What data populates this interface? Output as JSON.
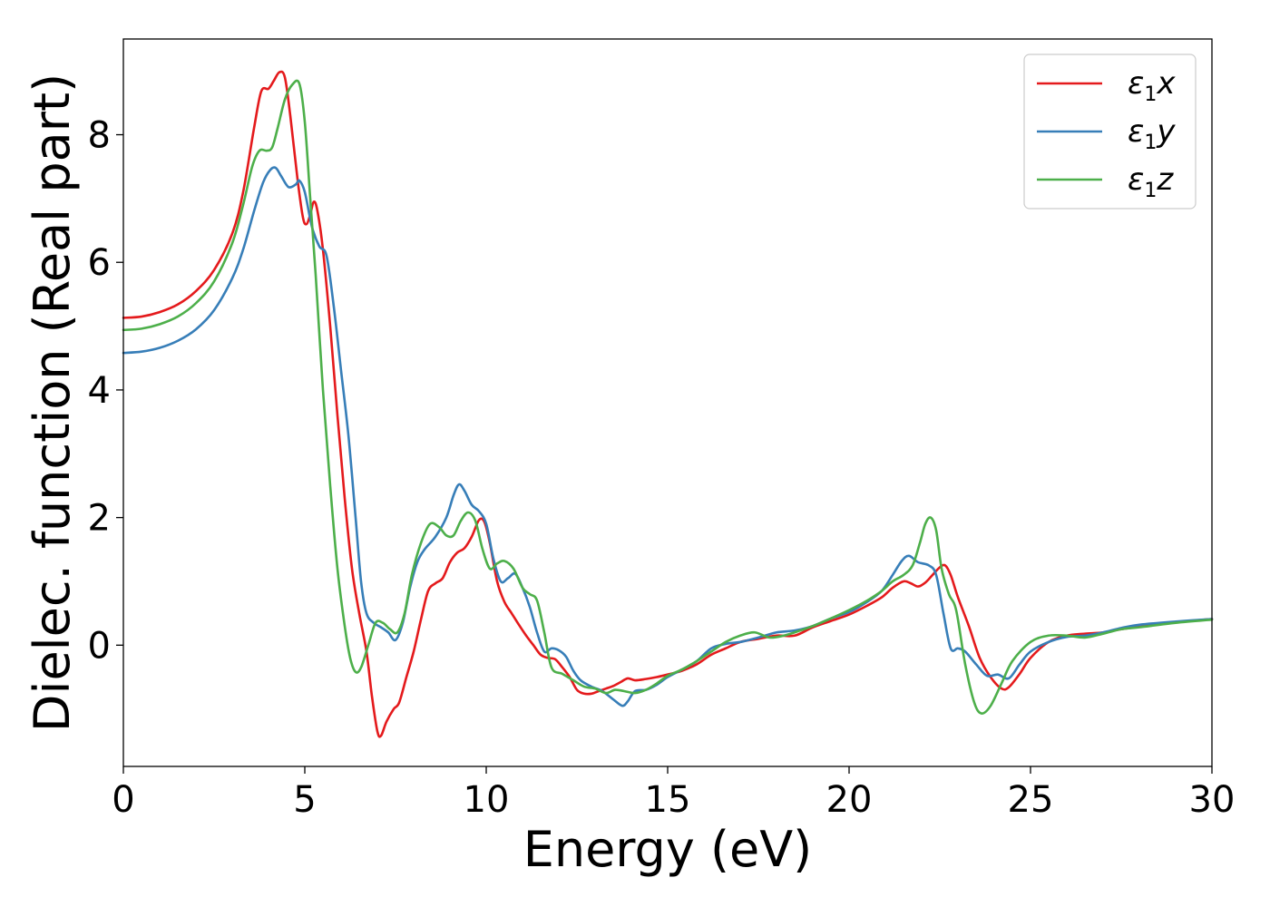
{
  "chart_data": {
    "type": "line",
    "xlabel": "Energy (eV)",
    "ylabel": "Dielec. function (Real part)",
    "xlim": [
      0,
      30
    ],
    "ylim": [
      -1.9,
      9.5
    ],
    "xticks": [
      0,
      5,
      10,
      15,
      20,
      25,
      30
    ],
    "yticks": [
      0,
      2,
      4,
      6,
      8
    ],
    "grid": false,
    "legend": "top-right",
    "series": [
      {
        "name": "ε1x",
        "sym": "ε",
        "sub": "1",
        "var": "x",
        "color": "#e41a1c",
        "points": [
          [
            0,
            5.13
          ],
          [
            0.5,
            5.15
          ],
          [
            1,
            5.22
          ],
          [
            1.5,
            5.34
          ],
          [
            2,
            5.55
          ],
          [
            2.5,
            5.88
          ],
          [
            3,
            6.45
          ],
          [
            3.3,
            7.1
          ],
          [
            3.6,
            8.1
          ],
          [
            3.8,
            8.68
          ],
          [
            4.0,
            8.72
          ],
          [
            4.15,
            8.85
          ],
          [
            4.3,
            8.98
          ],
          [
            4.45,
            8.9
          ],
          [
            4.6,
            8.3
          ],
          [
            4.8,
            7.3
          ],
          [
            4.95,
            6.7
          ],
          [
            5.05,
            6.6
          ],
          [
            5.15,
            6.75
          ],
          [
            5.25,
            6.95
          ],
          [
            5.35,
            6.8
          ],
          [
            5.5,
            6.2
          ],
          [
            5.7,
            5.0
          ],
          [
            5.9,
            3.6
          ],
          [
            6.1,
            2.3
          ],
          [
            6.3,
            1.2
          ],
          [
            6.5,
            0.5
          ],
          [
            6.7,
            -0.1
          ],
          [
            6.85,
            -0.8
          ],
          [
            7.0,
            -1.35
          ],
          [
            7.1,
            -1.42
          ],
          [
            7.25,
            -1.2
          ],
          [
            7.45,
            -1.0
          ],
          [
            7.6,
            -0.9
          ],
          [
            7.8,
            -0.5
          ],
          [
            8.0,
            -0.1
          ],
          [
            8.2,
            0.4
          ],
          [
            8.4,
            0.85
          ],
          [
            8.6,
            0.97
          ],
          [
            8.8,
            1.05
          ],
          [
            9.0,
            1.3
          ],
          [
            9.2,
            1.45
          ],
          [
            9.4,
            1.52
          ],
          [
            9.6,
            1.7
          ],
          [
            9.8,
            1.96
          ],
          [
            9.95,
            1.93
          ],
          [
            10.1,
            1.6
          ],
          [
            10.3,
            1.0
          ],
          [
            10.5,
            0.68
          ],
          [
            10.7,
            0.5
          ],
          [
            10.9,
            0.32
          ],
          [
            11.1,
            0.15
          ],
          [
            11.3,
            0.0
          ],
          [
            11.5,
            -0.15
          ],
          [
            11.7,
            -0.2
          ],
          [
            11.9,
            -0.22
          ],
          [
            12.1,
            -0.35
          ],
          [
            12.3,
            -0.5
          ],
          [
            12.5,
            -0.7
          ],
          [
            12.7,
            -0.76
          ],
          [
            12.9,
            -0.76
          ],
          [
            13.1,
            -0.72
          ],
          [
            13.3,
            -0.68
          ],
          [
            13.5,
            -0.64
          ],
          [
            13.7,
            -0.58
          ],
          [
            13.9,
            -0.52
          ],
          [
            14.1,
            -0.55
          ],
          [
            14.4,
            -0.53
          ],
          [
            14.7,
            -0.5
          ],
          [
            15.0,
            -0.46
          ],
          [
            15.4,
            -0.4
          ],
          [
            15.8,
            -0.3
          ],
          [
            16.2,
            -0.15
          ],
          [
            16.6,
            -0.05
          ],
          [
            17.0,
            0.05
          ],
          [
            17.5,
            0.1
          ],
          [
            18.0,
            0.15
          ],
          [
            18.5,
            0.15
          ],
          [
            19.0,
            0.28
          ],
          [
            19.5,
            0.38
          ],
          [
            20.0,
            0.48
          ],
          [
            20.5,
            0.62
          ],
          [
            20.9,
            0.75
          ],
          [
            21.2,
            0.9
          ],
          [
            21.5,
            1.0
          ],
          [
            21.7,
            0.97
          ],
          [
            21.9,
            0.92
          ],
          [
            22.1,
            0.98
          ],
          [
            22.3,
            1.1
          ],
          [
            22.5,
            1.22
          ],
          [
            22.65,
            1.25
          ],
          [
            22.8,
            1.1
          ],
          [
            23.0,
            0.75
          ],
          [
            23.3,
            0.3
          ],
          [
            23.6,
            -0.2
          ],
          [
            23.9,
            -0.5
          ],
          [
            24.2,
            -0.68
          ],
          [
            24.4,
            -0.66
          ],
          [
            24.7,
            -0.45
          ],
          [
            25.0,
            -0.2
          ],
          [
            25.5,
            0.05
          ],
          [
            26.0,
            0.15
          ],
          [
            26.5,
            0.18
          ],
          [
            27.0,
            0.2
          ],
          [
            27.5,
            0.25
          ],
          [
            28.0,
            0.29
          ],
          [
            29.0,
            0.36
          ],
          [
            30.0,
            0.41
          ]
        ]
      },
      {
        "name": "ε1y",
        "sym": "ε",
        "sub": "1",
        "var": "y",
        "color": "#377eb8",
        "points": [
          [
            0,
            4.58
          ],
          [
            0.5,
            4.6
          ],
          [
            1,
            4.66
          ],
          [
            1.5,
            4.77
          ],
          [
            2,
            4.95
          ],
          [
            2.5,
            5.25
          ],
          [
            3,
            5.75
          ],
          [
            3.3,
            6.2
          ],
          [
            3.6,
            6.8
          ],
          [
            3.85,
            7.25
          ],
          [
            4.05,
            7.45
          ],
          [
            4.2,
            7.48
          ],
          [
            4.35,
            7.35
          ],
          [
            4.55,
            7.18
          ],
          [
            4.75,
            7.22
          ],
          [
            4.85,
            7.28
          ],
          [
            5.0,
            7.1
          ],
          [
            5.2,
            6.55
          ],
          [
            5.4,
            6.25
          ],
          [
            5.6,
            6.1
          ],
          [
            5.8,
            5.3
          ],
          [
            6.0,
            4.3
          ],
          [
            6.2,
            3.3
          ],
          [
            6.4,
            2.0
          ],
          [
            6.55,
            1.0
          ],
          [
            6.7,
            0.5
          ],
          [
            6.9,
            0.35
          ],
          [
            7.1,
            0.28
          ],
          [
            7.3,
            0.2
          ],
          [
            7.5,
            0.08
          ],
          [
            7.7,
            0.35
          ],
          [
            7.9,
            0.9
          ],
          [
            8.1,
            1.3
          ],
          [
            8.3,
            1.5
          ],
          [
            8.6,
            1.7
          ],
          [
            8.9,
            2.0
          ],
          [
            9.1,
            2.35
          ],
          [
            9.25,
            2.52
          ],
          [
            9.4,
            2.42
          ],
          [
            9.6,
            2.2
          ],
          [
            9.8,
            2.1
          ],
          [
            10.0,
            1.9
          ],
          [
            10.2,
            1.35
          ],
          [
            10.4,
            1.0
          ],
          [
            10.6,
            1.05
          ],
          [
            10.8,
            1.12
          ],
          [
            11.0,
            0.9
          ],
          [
            11.2,
            0.6
          ],
          [
            11.4,
            0.2
          ],
          [
            11.6,
            -0.1
          ],
          [
            11.8,
            -0.05
          ],
          [
            12.0,
            -0.08
          ],
          [
            12.2,
            -0.18
          ],
          [
            12.4,
            -0.4
          ],
          [
            12.6,
            -0.55
          ],
          [
            12.9,
            -0.65
          ],
          [
            13.2,
            -0.72
          ],
          [
            13.5,
            -0.85
          ],
          [
            13.75,
            -0.95
          ],
          [
            13.9,
            -0.88
          ],
          [
            14.1,
            -0.72
          ],
          [
            14.4,
            -0.7
          ],
          [
            14.7,
            -0.62
          ],
          [
            15.0,
            -0.5
          ],
          [
            15.4,
            -0.38
          ],
          [
            15.8,
            -0.25
          ],
          [
            16.2,
            -0.05
          ],
          [
            16.6,
            0.02
          ],
          [
            17.0,
            0.05
          ],
          [
            17.5,
            0.12
          ],
          [
            18.0,
            0.2
          ],
          [
            18.5,
            0.23
          ],
          [
            19.0,
            0.3
          ],
          [
            19.5,
            0.42
          ],
          [
            20.0,
            0.52
          ],
          [
            20.5,
            0.68
          ],
          [
            20.9,
            0.85
          ],
          [
            21.2,
            1.1
          ],
          [
            21.45,
            1.32
          ],
          [
            21.65,
            1.4
          ],
          [
            21.9,
            1.3
          ],
          [
            22.2,
            1.25
          ],
          [
            22.4,
            1.1
          ],
          [
            22.6,
            0.5
          ],
          [
            22.8,
            -0.05
          ],
          [
            23.0,
            -0.05
          ],
          [
            23.2,
            -0.1
          ],
          [
            23.5,
            -0.3
          ],
          [
            23.8,
            -0.48
          ],
          [
            24.1,
            -0.46
          ],
          [
            24.4,
            -0.52
          ],
          [
            24.7,
            -0.3
          ],
          [
            25.0,
            -0.1
          ],
          [
            25.5,
            0.05
          ],
          [
            26.0,
            0.13
          ],
          [
            26.5,
            0.15
          ],
          [
            27.0,
            0.2
          ],
          [
            27.5,
            0.27
          ],
          [
            28.0,
            0.32
          ],
          [
            29.0,
            0.37
          ],
          [
            30.0,
            0.41
          ]
        ]
      },
      {
        "name": "ε1z",
        "sym": "ε",
        "sub": "1",
        "var": "z",
        "color": "#4daf4a",
        "points": [
          [
            0,
            4.94
          ],
          [
            0.5,
            4.96
          ],
          [
            1,
            5.03
          ],
          [
            1.5,
            5.15
          ],
          [
            2,
            5.36
          ],
          [
            2.5,
            5.7
          ],
          [
            3,
            6.3
          ],
          [
            3.3,
            6.9
          ],
          [
            3.55,
            7.5
          ],
          [
            3.75,
            7.75
          ],
          [
            3.95,
            7.75
          ],
          [
            4.1,
            7.8
          ],
          [
            4.25,
            8.1
          ],
          [
            4.45,
            8.55
          ],
          [
            4.65,
            8.78
          ],
          [
            4.85,
            8.8
          ],
          [
            5.0,
            8.2
          ],
          [
            5.15,
            7.0
          ],
          [
            5.3,
            5.8
          ],
          [
            5.5,
            4.0
          ],
          [
            5.7,
            2.5
          ],
          [
            5.9,
            1.2
          ],
          [
            6.1,
            0.3
          ],
          [
            6.25,
            -0.2
          ],
          [
            6.4,
            -0.42
          ],
          [
            6.55,
            -0.35
          ],
          [
            6.75,
            0.0
          ],
          [
            6.95,
            0.35
          ],
          [
            7.15,
            0.35
          ],
          [
            7.35,
            0.25
          ],
          [
            7.55,
            0.2
          ],
          [
            7.75,
            0.5
          ],
          [
            7.95,
            1.1
          ],
          [
            8.2,
            1.6
          ],
          [
            8.45,
            1.9
          ],
          [
            8.7,
            1.85
          ],
          [
            8.9,
            1.72
          ],
          [
            9.1,
            1.72
          ],
          [
            9.3,
            1.95
          ],
          [
            9.5,
            2.08
          ],
          [
            9.7,
            1.95
          ],
          [
            9.9,
            1.5
          ],
          [
            10.1,
            1.2
          ],
          [
            10.3,
            1.28
          ],
          [
            10.5,
            1.32
          ],
          [
            10.75,
            1.2
          ],
          [
            11.0,
            0.9
          ],
          [
            11.2,
            0.8
          ],
          [
            11.4,
            0.7
          ],
          [
            11.6,
            0.2
          ],
          [
            11.8,
            -0.35
          ],
          [
            12.1,
            -0.45
          ],
          [
            12.4,
            -0.55
          ],
          [
            12.7,
            -0.65
          ],
          [
            13.0,
            -0.68
          ],
          [
            13.3,
            -0.75
          ],
          [
            13.55,
            -0.7
          ],
          [
            13.8,
            -0.72
          ],
          [
            14.1,
            -0.75
          ],
          [
            14.4,
            -0.7
          ],
          [
            14.7,
            -0.6
          ],
          [
            15.0,
            -0.48
          ],
          [
            15.4,
            -0.38
          ],
          [
            15.8,
            -0.25
          ],
          [
            16.2,
            -0.1
          ],
          [
            16.6,
            0.05
          ],
          [
            17.0,
            0.15
          ],
          [
            17.4,
            0.2
          ],
          [
            17.8,
            0.12
          ],
          [
            18.2,
            0.15
          ],
          [
            18.6,
            0.22
          ],
          [
            19.0,
            0.3
          ],
          [
            19.5,
            0.42
          ],
          [
            20.0,
            0.55
          ],
          [
            20.5,
            0.7
          ],
          [
            20.9,
            0.85
          ],
          [
            21.2,
            1.0
          ],
          [
            21.5,
            1.1
          ],
          [
            21.75,
            1.25
          ],
          [
            21.95,
            1.6
          ],
          [
            22.1,
            1.9
          ],
          [
            22.25,
            2.0
          ],
          [
            22.4,
            1.8
          ],
          [
            22.55,
            1.2
          ],
          [
            22.75,
            0.8
          ],
          [
            22.95,
            0.55
          ],
          [
            23.2,
            -0.3
          ],
          [
            23.45,
            -0.9
          ],
          [
            23.65,
            -1.07
          ],
          [
            23.9,
            -0.95
          ],
          [
            24.2,
            -0.6
          ],
          [
            24.5,
            -0.25
          ],
          [
            25.0,
            0.05
          ],
          [
            25.5,
            0.15
          ],
          [
            26.0,
            0.15
          ],
          [
            26.5,
            0.12
          ],
          [
            27.0,
            0.18
          ],
          [
            27.5,
            0.25
          ],
          [
            28.0,
            0.28
          ],
          [
            29.0,
            0.35
          ],
          [
            30.0,
            0.4
          ]
        ]
      }
    ]
  }
}
